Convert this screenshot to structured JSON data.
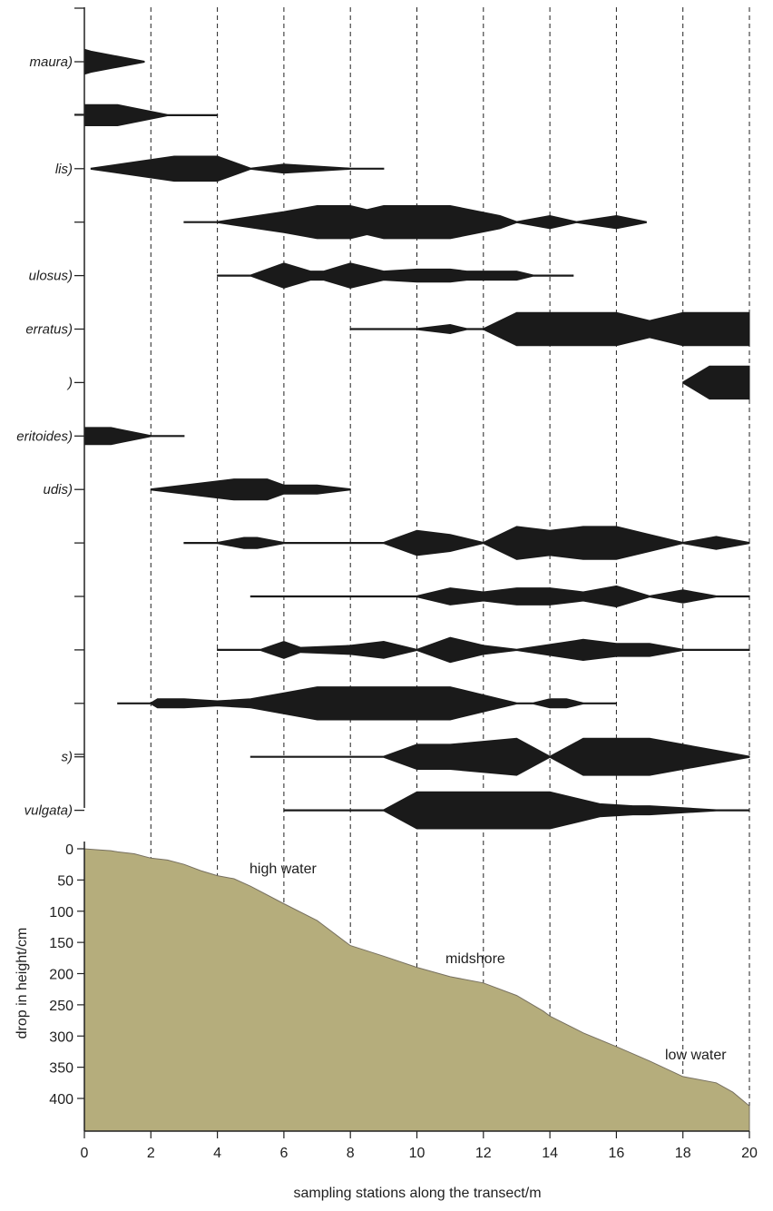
{
  "chart_data": [
    {
      "type": "kite",
      "xlim": [
        0,
        20
      ],
      "grid": "vertical dashed lines every 2 m",
      "species": [
        {
          "label": "maura)",
          "profile": [
            [
              0,
              6
            ],
            [
              0.2,
              5
            ],
            [
              1.8,
              0
            ]
          ]
        },
        {
          "label": "",
          "profile": [
            [
              0,
              5
            ],
            [
              1,
              5
            ],
            [
              2.5,
              0
            ],
            [
              4,
              0
            ]
          ]
        },
        {
          "label": "lis)",
          "profile": [
            [
              0.2,
              0
            ],
            [
              2.7,
              6
            ],
            [
              4,
              6
            ],
            [
              5,
              0
            ],
            [
              6,
              2
            ],
            [
              8,
              0
            ],
            [
              9,
              0
            ]
          ]
        },
        {
          "label": "",
          "profile": [
            [
              3,
              0
            ],
            [
              4,
              0
            ],
            [
              6,
              5
            ],
            [
              7,
              8
            ],
            [
              8,
              8
            ],
            [
              8.5,
              6
            ],
            [
              9,
              8
            ],
            [
              11,
              8
            ],
            [
              12.5,
              3
            ],
            [
              13,
              0
            ],
            [
              14,
              3
            ],
            [
              14.8,
              0
            ],
            [
              16,
              3
            ],
            [
              16.9,
              0
            ]
          ]
        },
        {
          "label": "ulosus)",
          "profile": [
            [
              4,
              0
            ],
            [
              5,
              0
            ],
            [
              6,
              6
            ],
            [
              6.8,
              2
            ],
            [
              7.2,
              2
            ],
            [
              8,
              6
            ],
            [
              9,
              2
            ],
            [
              10,
              3
            ],
            [
              11,
              3
            ],
            [
              11.5,
              2
            ],
            [
              13,
              2
            ],
            [
              13.5,
              0
            ],
            [
              14.7,
              0
            ]
          ]
        },
        {
          "label": "erratus)",
          "profile": [
            [
              8,
              0
            ],
            [
              10,
              0
            ],
            [
              11,
              2
            ],
            [
              11.5,
              0
            ],
            [
              12,
              0
            ],
            [
              13,
              8
            ],
            [
              16,
              8
            ],
            [
              17,
              4
            ],
            [
              18,
              8
            ],
            [
              20,
              8
            ]
          ]
        },
        {
          "label": ")",
          "profile": [
            [
              18,
              0
            ],
            [
              18.8,
              8
            ],
            [
              20,
              8
            ]
          ]
        },
        {
          "label": "eritoides)",
          "profile": [
            [
              0,
              4
            ],
            [
              0.8,
              4
            ],
            [
              2,
              0
            ],
            [
              3,
              0
            ]
          ]
        },
        {
          "label": "udis)",
          "profile": [
            [
              2,
              0
            ],
            [
              4.5,
              5
            ],
            [
              5.5,
              5
            ],
            [
              6,
              2
            ],
            [
              7,
              2
            ],
            [
              8,
              0
            ]
          ]
        },
        {
          "label": "",
          "profile": [
            [
              3,
              0
            ],
            [
              4,
              0
            ],
            [
              4.8,
              2.5
            ],
            [
              5.2,
              2.5
            ],
            [
              6,
              0
            ],
            [
              9,
              0
            ],
            [
              10,
              6
            ],
            [
              11,
              4
            ],
            [
              12,
              0
            ],
            [
              13,
              8
            ],
            [
              14,
              6
            ],
            [
              15,
              8
            ],
            [
              16,
              8
            ],
            [
              17,
              4
            ],
            [
              18,
              0
            ],
            [
              19,
              3
            ],
            [
              20,
              0
            ]
          ]
        },
        {
          "label": "",
          "profile": [
            [
              5,
              0
            ],
            [
              10,
              0
            ],
            [
              11,
              4
            ],
            [
              12,
              2
            ],
            [
              13,
              4
            ],
            [
              14,
              4
            ],
            [
              15,
              2
            ],
            [
              16,
              5
            ],
            [
              17,
              0
            ],
            [
              18,
              3
            ],
            [
              19,
              0
            ],
            [
              20,
              0
            ]
          ]
        },
        {
          "label": "",
          "profile": [
            [
              4,
              0
            ],
            [
              5.3,
              0
            ],
            [
              6,
              4
            ],
            [
              6.5,
              1
            ],
            [
              8,
              2
            ],
            [
              9,
              4
            ],
            [
              10,
              0
            ],
            [
              11,
              6
            ],
            [
              12,
              2
            ],
            [
              13,
              0
            ],
            [
              15,
              5
            ],
            [
              16,
              3
            ],
            [
              17,
              3
            ],
            [
              18,
              0
            ],
            [
              20,
              0
            ]
          ]
        },
        {
          "label": "",
          "profile": [
            [
              1,
              0
            ],
            [
              2,
              0
            ],
            [
              2.2,
              2
            ],
            [
              3,
              2
            ],
            [
              4,
              1
            ],
            [
              5,
              2
            ],
            [
              6,
              5
            ],
            [
              7,
              8
            ],
            [
              11,
              8
            ],
            [
              12.5,
              2
            ],
            [
              13,
              0
            ],
            [
              13.5,
              0
            ],
            [
              14,
              2
            ],
            [
              14.5,
              2
            ],
            [
              15,
              0
            ],
            [
              16,
              0
            ]
          ]
        },
        {
          "label": "s)",
          "profile": [
            [
              5,
              0
            ],
            [
              9,
              0
            ],
            [
              10,
              6
            ],
            [
              11,
              6
            ],
            [
              13,
              9
            ],
            [
              14,
              0
            ],
            [
              15,
              9
            ],
            [
              17,
              9
            ],
            [
              20,
              0
            ]
          ]
        },
        {
          "label": "vulgata)",
          "profile": [
            [
              6,
              0
            ],
            [
              9,
              0
            ],
            [
              10,
              9
            ],
            [
              14,
              9
            ],
            [
              15.5,
              3
            ],
            [
              16.5,
              2
            ],
            [
              17,
              2
            ],
            [
              18,
              1
            ],
            [
              19,
              0
            ],
            [
              20,
              0
            ]
          ]
        }
      ]
    },
    {
      "type": "area",
      "xlabel": "sampling stations along the transect/m",
      "ylabel": "drop in height/cm",
      "xlim": [
        0,
        20
      ],
      "ylim": [
        0,
        400
      ],
      "y_inverted": true,
      "x_ticks": [
        "0",
        "2",
        "4",
        "6",
        "8",
        "10",
        "12",
        "14",
        "16",
        "18",
        "20"
      ],
      "y_ticks": [
        "0",
        "50",
        "100",
        "150",
        "200",
        "250",
        "300",
        "350",
        "400"
      ],
      "fill_color": "#b5ad7c",
      "profile_x": [
        0,
        0.5,
        0.8,
        1,
        1.5,
        2,
        2.5,
        3,
        3.5,
        4,
        4.5,
        5,
        6,
        7,
        8,
        9,
        10,
        11,
        12,
        13,
        13.8,
        14,
        15,
        16,
        17,
        18,
        19,
        19.5,
        20
      ],
      "profile_y": [
        0,
        2,
        3,
        5,
        8,
        15,
        18,
        25,
        35,
        43,
        48,
        60,
        88,
        115,
        155,
        172,
        190,
        205,
        215,
        235,
        260,
        268,
        295,
        317,
        340,
        365,
        375,
        390,
        412
      ],
      "annotations": [
        "high water",
        "midshore",
        "low water"
      ]
    }
  ]
}
